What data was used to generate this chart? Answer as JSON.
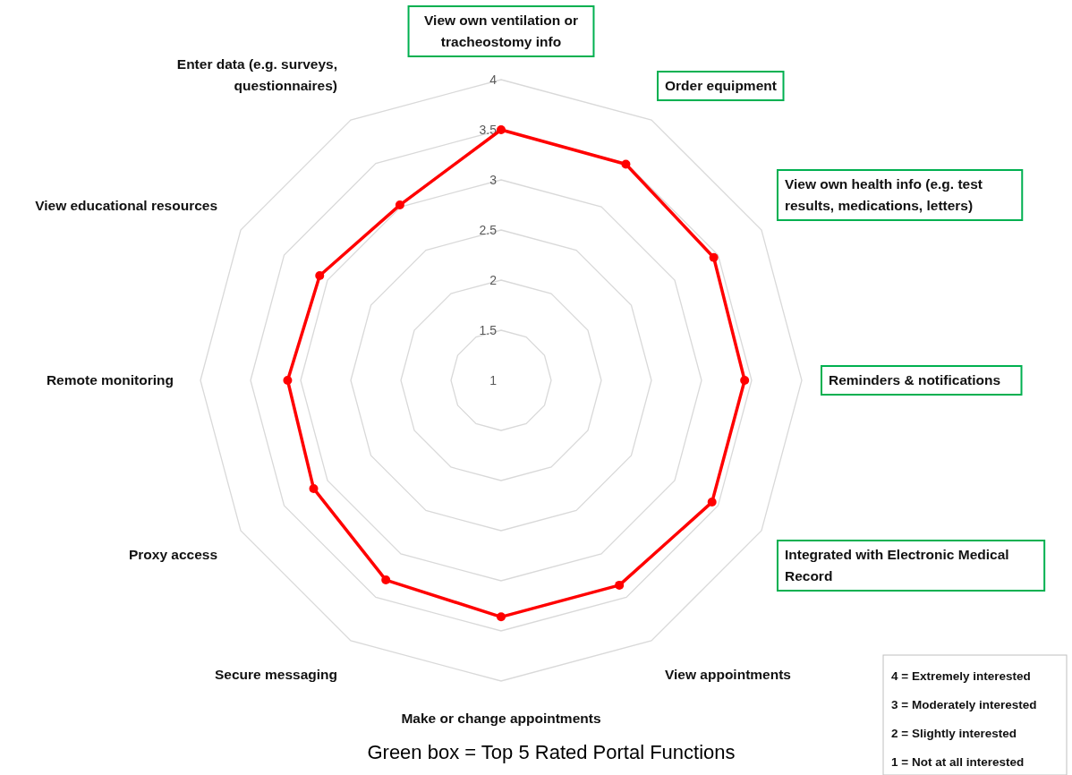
{
  "chart_data": {
    "type": "radar",
    "categories": [
      "View own ventilation or tracheostomy info",
      "Order equipment",
      "View own health info (e.g. test results, medications, letters)",
      "Reminders & notifications",
      "Integrated with Electronic Medical Record",
      "View appointments",
      "Make or change appointments",
      "Secure messaging",
      "Proxy access",
      "Remote monitoring",
      "View educational resources",
      "Enter data (e.g. surveys, questionnaires)"
    ],
    "series": [
      {
        "color": "#ff0000",
        "values": [
          3.5,
          3.49,
          3.45,
          3.43,
          3.43,
          3.36,
          3.36,
          3.3,
          3.16,
          3.13,
          3.09,
          3.02
        ]
      }
    ],
    "ylim": [
      1,
      4
    ],
    "yticks": [
      1,
      1.5,
      2,
      2.5,
      3,
      3.5,
      4
    ],
    "marker": "circle",
    "grid": true,
    "annotations": [
      "4 = Extremely interested",
      "3 = Moderately interested",
      "2 = Slightly interested",
      "1 = Not at all interested",
      "Green box = Top 5 Rated Portal Functions"
    ]
  }
}
